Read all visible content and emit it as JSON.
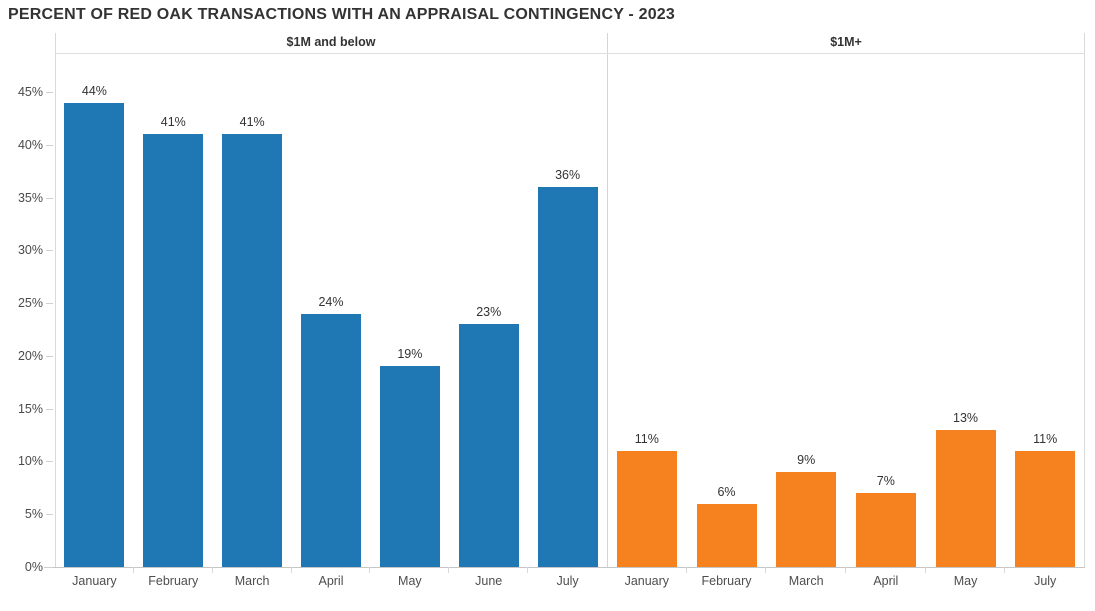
{
  "title": "PERCENT OF RED OAK TRANSACTIONS WITH AN APPRAISAL CONTINGENCY - 2023",
  "colors": {
    "blue_bar": "#1F77B4",
    "orange_bar": "#F5821F",
    "title_text": "#333333",
    "axis_text": "#4A4A4A",
    "border_line": "#D9D9D9"
  },
  "y_axis": {
    "tick_labels": [
      "0%",
      "5%",
      "10%",
      "15%",
      "20%",
      "25%",
      "30%",
      "35%",
      "40%",
      "45%"
    ],
    "min": 0,
    "max": 45,
    "step": 5
  },
  "chart_data": {
    "type": "bar",
    "title": "PERCENT OF RED OAK TRANSACTIONS WITH AN APPRAISAL CONTINGENCY - 2023",
    "xlabel": "",
    "ylabel": "",
    "ylim": [
      0,
      45
    ],
    "grid": false,
    "legend": "none",
    "panels": [
      {
        "header": "$1M and below",
        "color": "#1F77B4",
        "categories": [
          "January",
          "February",
          "March",
          "April",
          "May",
          "June",
          "July"
        ],
        "values": [
          44,
          41,
          41,
          24,
          19,
          23,
          36
        ],
        "labels": [
          "44%",
          "41%",
          "41%",
          "24%",
          "19%",
          "23%",
          "36%"
        ]
      },
      {
        "header": "$1M+",
        "color": "#F5821F",
        "categories": [
          "January",
          "February",
          "March",
          "April",
          "May",
          "July"
        ],
        "values": [
          11,
          6,
          9,
          7,
          13,
          11
        ],
        "labels": [
          "11%",
          "6%",
          "9%",
          "7%",
          "13%",
          "11%"
        ]
      }
    ]
  }
}
